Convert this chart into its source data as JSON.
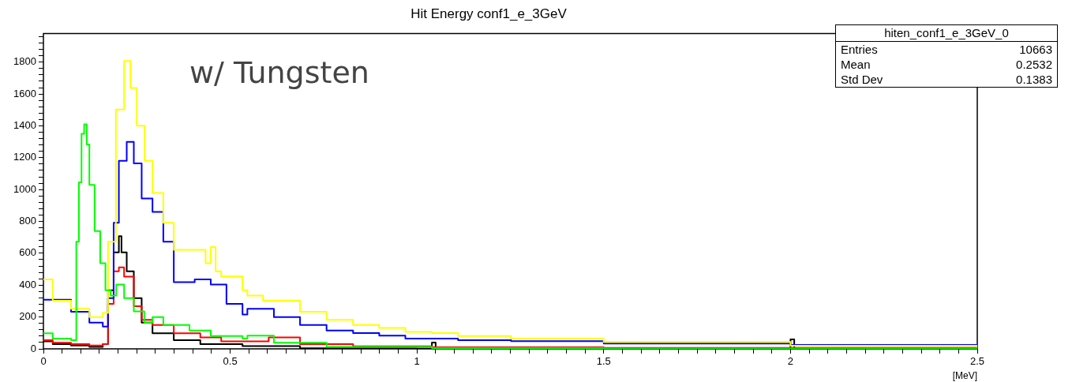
{
  "chart_data": {
    "type": "step",
    "title": "Hit Energy conf1_e_3GeV",
    "xlabel": "[MeV]",
    "xlim": [
      0,
      2.5
    ],
    "xticks": [
      0,
      {
        "value": 0.05,
        "label": null
      },
      {
        "value": 0.1,
        "label": null
      },
      {
        "value": 0.15,
        "label": null
      },
      {
        "value": 0.2,
        "label": null
      },
      {
        "value": 0.25,
        "label": null
      },
      {
        "value": 0.3,
        "label": null
      },
      {
        "value": 0.35,
        "label": null
      },
      {
        "value": 0.4,
        "label": null
      },
      {
        "value": 0.45,
        "label": null
      },
      0.5,
      {
        "value": 0.55,
        "label": null
      },
      {
        "value": 0.6,
        "label": null
      },
      {
        "value": 0.65,
        "label": null
      },
      {
        "value": 0.7,
        "label": null
      },
      {
        "value": 0.75,
        "label": null
      },
      {
        "value": 0.8,
        "label": null
      },
      {
        "value": 0.85,
        "label": null
      },
      {
        "value": 0.9,
        "label": null
      },
      {
        "value": 0.95,
        "label": null
      },
      1,
      {
        "value": 1.05,
        "label": null
      },
      {
        "value": 1.1,
        "label": null
      },
      {
        "value": 1.15,
        "label": null
      },
      {
        "value": 1.2,
        "label": null
      },
      {
        "value": 1.25,
        "label": null
      },
      {
        "value": 1.3,
        "label": null
      },
      {
        "value": 1.35,
        "label": null
      },
      {
        "value": 1.4,
        "label": null
      },
      {
        "value": 1.45,
        "label": null
      },
      1.5,
      {
        "value": 1.55,
        "label": null
      },
      {
        "value": 1.6,
        "label": null
      },
      {
        "value": 1.65,
        "label": null
      },
      {
        "value": 1.7,
        "label": null
      },
      {
        "value": 1.75,
        "label": null
      },
      {
        "value": 1.8,
        "label": null
      },
      {
        "value": 1.85,
        "label": null
      },
      {
        "value": 1.9,
        "label": null
      },
      {
        "value": 1.95,
        "label": null
      },
      2,
      {
        "value": 2.05,
        "label": null
      },
      {
        "value": 2.1,
        "label": null
      },
      {
        "value": 2.15,
        "label": null
      },
      {
        "value": 2.2,
        "label": null
      },
      {
        "value": 2.25,
        "label": null
      },
      {
        "value": 2.3,
        "label": null
      },
      {
        "value": 2.35,
        "label": null
      },
      {
        "value": 2.4,
        "label": null
      },
      {
        "value": 2.45,
        "label": null
      },
      2.5
    ],
    "ylim": [
      0,
      1980
    ],
    "yticks": [
      0,
      {
        "value": 40,
        "label": null
      },
      {
        "value": 80,
        "label": null
      },
      {
        "value": 120,
        "label": null
      },
      {
        "value": 160,
        "label": null
      },
      200,
      {
        "value": 240,
        "label": null
      },
      {
        "value": 280,
        "label": null
      },
      {
        "value": 320,
        "label": null
      },
      {
        "value": 360,
        "label": null
      },
      400,
      {
        "value": 440,
        "label": null
      },
      {
        "value": 480,
        "label": null
      },
      {
        "value": 520,
        "label": null
      },
      {
        "value": 560,
        "label": null
      },
      600,
      {
        "value": 640,
        "label": null
      },
      {
        "value": 680,
        "label": null
      },
      {
        "value": 720,
        "label": null
      },
      {
        "value": 760,
        "label": null
      },
      800,
      {
        "value": 840,
        "label": null
      },
      {
        "value": 880,
        "label": null
      },
      {
        "value": 920,
        "label": null
      },
      {
        "value": 960,
        "label": null
      },
      1000,
      {
        "value": 1040,
        "label": null
      },
      {
        "value": 1080,
        "label": null
      },
      {
        "value": 1120,
        "label": null
      },
      {
        "value": 1160,
        "label": null
      },
      1200,
      {
        "value": 1240,
        "label": null
      },
      {
        "value": 1280,
        "label": null
      },
      {
        "value": 1320,
        "label": null
      },
      {
        "value": 1360,
        "label": null
      },
      1400,
      {
        "value": 1440,
        "label": null
      },
      {
        "value": 1480,
        "label": null
      },
      {
        "value": 1520,
        "label": null
      },
      {
        "value": 1560,
        "label": null
      },
      1600,
      {
        "value": 1640,
        "label": null
      },
      {
        "value": 1680,
        "label": null
      },
      {
        "value": 1720,
        "label": null
      },
      {
        "value": 1760,
        "label": null
      },
      1800,
      {
        "value": 1840,
        "label": null
      },
      {
        "value": 1880,
        "label": null
      },
      {
        "value": 1920,
        "label": null
      },
      {
        "value": 1960,
        "label": null
      }
    ],
    "grid": false,
    "legend": false,
    "marker": "none",
    "line_style": "solid",
    "annotations": [
      "w/ Tungsten",
      "hiten_conf1_e_3GeV_0",
      "Entries",
      "10663",
      "Mean",
      "0.2532",
      "Std Dev",
      "0.1383"
    ],
    "series": [
      {
        "color": "#000000",
        "x": [
          0,
          0.025,
          0.074,
          0.123,
          0.159,
          0.173,
          0.188,
          0.202,
          0.209,
          0.223,
          0.242,
          0.263,
          0.292,
          0.349,
          0.42,
          0.533,
          0.687,
          1.0,
          1.04,
          1.05,
          1.5,
          2.0,
          2.01,
          2.5
        ],
        "values": [
          47,
          30,
          21,
          13,
          30,
          368,
          606,
          707,
          606,
          487,
          318,
          165,
          98,
          55,
          30,
          17,
          4,
          3,
          40,
          3,
          3,
          60,
          3,
          2
        ]
      },
      {
        "color": "#ff0000",
        "x": [
          0,
          0.025,
          0.074,
          0.123,
          0.159,
          0.173,
          0.188,
          0.202,
          0.216,
          0.242,
          0.263,
          0.292,
          0.349,
          0.42,
          0.476,
          0.603,
          0.687,
          0.829,
          1.04,
          1.5,
          2.5
        ],
        "values": [
          55,
          38,
          30,
          21,
          30,
          283,
          487,
          512,
          453,
          267,
          182,
          150,
          98,
          72,
          47,
          72,
          30,
          16,
          10,
          6,
          2
        ]
      },
      {
        "color": "#0000ff",
        "x": [
          0,
          0.074,
          0.123,
          0.159,
          0.173,
          0.188,
          0.202,
          0.223,
          0.242,
          0.263,
          0.292,
          0.321,
          0.349,
          0.391,
          0.405,
          0.448,
          0.49,
          0.533,
          0.546,
          0.617,
          0.687,
          0.758,
          0.829,
          0.899,
          0.969,
          1.11,
          1.252,
          1.5,
          2.0,
          2.5
        ],
        "values": [
          309,
          233,
          165,
          140,
          318,
          791,
          1181,
          1300,
          1164,
          944,
          860,
          673,
          419,
          419,
          436,
          404,
          283,
          216,
          252,
          200,
          150,
          115,
          99,
          83,
          64,
          55,
          48,
          34,
          25,
          13
        ]
      },
      {
        "color": "#ffff00",
        "x": [
          0,
          0.025,
          0.074,
          0.123,
          0.159,
          0.173,
          0.194,
          0.216,
          0.233,
          0.25,
          0.271,
          0.292,
          0.321,
          0.349,
          0.391,
          0.434,
          0.448,
          0.461,
          0.476,
          0.533,
          0.546,
          0.588,
          0.617,
          0.687,
          0.758,
          0.829,
          0.899,
          0.969,
          1.04,
          1.11,
          1.252,
          1.5,
          2.0,
          2.5
        ],
        "values": [
          436,
          302,
          251,
          200,
          226,
          673,
          1503,
          1807,
          1638,
          1401,
          1181,
          978,
          791,
          622,
          622,
          537,
          639,
          487,
          455,
          368,
          334,
          302,
          302,
          233,
          182,
          150,
          131,
          106,
          99,
          80,
          64,
          43,
          20,
          9
        ]
      },
      {
        "color": "#00ff00",
        "x": [
          0,
          0.025,
          0.074,
          0.088,
          0.095,
          0.102,
          0.109,
          0.116,
          0.123,
          0.137,
          0.152,
          0.166,
          0.18,
          0.195,
          0.216,
          0.242,
          0.27,
          0.292,
          0.321,
          0.391,
          0.448,
          0.533,
          0.546,
          0.617,
          0.758,
          1.04,
          1.5,
          2.5
        ],
        "values": [
          98,
          64,
          55,
          673,
          1046,
          1350,
          1410,
          1283,
          1029,
          740,
          537,
          368,
          334,
          404,
          318,
          235,
          165,
          200,
          150,
          115,
          80,
          64,
          83,
          38,
          13,
          5,
          3,
          2
        ]
      }
    ]
  }
}
